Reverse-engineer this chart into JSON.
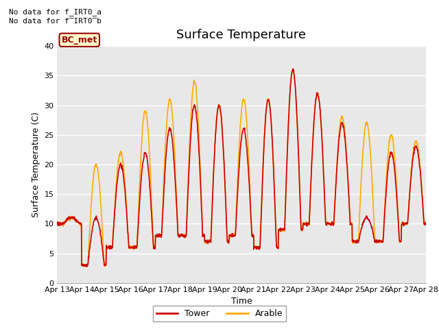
{
  "title": "Surface Temperature",
  "ylabel": "Surface Temperature (C)",
  "xlabel": "Time",
  "ylim": [
    0,
    40
  ],
  "yticks": [
    0,
    5,
    10,
    15,
    20,
    25,
    30,
    35,
    40
  ],
  "x_tick_labels": [
    "Apr 13",
    "Apr 14",
    "Apr 15",
    "Apr 16",
    "Apr 17",
    "Apr 18",
    "Apr 19",
    "Apr 20",
    "Apr 21",
    "Apr 22",
    "Apr 23",
    "Apr 24",
    "Apr 25",
    "Apr 26",
    "Apr 27",
    "Apr 28"
  ],
  "tower_color": "#cc0000",
  "arable_color": "#ffaa00",
  "legend_tower": "Tower",
  "legend_arable": "Arable",
  "annotation_text1": "No data for f_IRT0_a",
  "annotation_text2": "No data for f̅IRT0̅b",
  "bc_met_text": "BC_met",
  "background_color": "#e8e8e8",
  "figure_bg": "#ffffff",
  "grid_color": "#ffffff",
  "title_fontsize": 13,
  "axis_fontsize": 9,
  "tick_fontsize": 8,
  "line_width": 1.2
}
